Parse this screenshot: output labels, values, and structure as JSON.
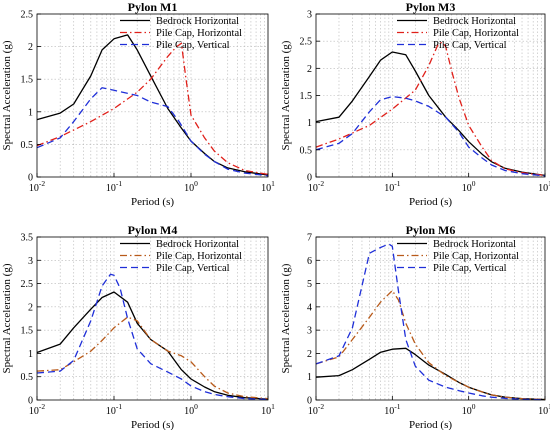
{
  "figure_bg": "#ffffff",
  "chart_data": [
    {
      "type": "line",
      "title": "Pylon M1",
      "xlabel": "Period (s)",
      "ylabel": "Spectral Acceleration (g)",
      "xscale": "log",
      "xlim": [
        0.01,
        10
      ],
      "ylim": [
        0,
        2.5
      ],
      "xticks": [
        0.01,
        0.1,
        1,
        10
      ],
      "xtick_labels": [
        "10",
        "10",
        "10",
        "10"
      ],
      "xtick_exponents": [
        "-2",
        "-1",
        "0",
        "1"
      ],
      "yticks": [
        0,
        0.5,
        1,
        1.5,
        2,
        2.5
      ],
      "ytick_labels": [
        "0",
        "0.5",
        "1",
        "1.5",
        "2",
        "2.5"
      ],
      "grid": true,
      "legend_position": "top-right",
      "series": [
        {
          "name": "Bedrock Horizontal",
          "color": "#000000",
          "dash": "solid",
          "x": [
            0.01,
            0.02,
            0.03,
            0.05,
            0.07,
            0.1,
            0.15,
            0.2,
            0.3,
            0.5,
            0.75,
            1,
            1.5,
            2,
            3,
            5,
            10
          ],
          "y": [
            0.88,
            0.98,
            1.12,
            1.55,
            1.95,
            2.12,
            2.18,
            1.95,
            1.55,
            1.05,
            0.75,
            0.55,
            0.36,
            0.24,
            0.14,
            0.08,
            0.03
          ]
        },
        {
          "name": "Pile Cap, Horizontal",
          "color": "#e0201a",
          "dash": "dashdot",
          "x": [
            0.01,
            0.02,
            0.05,
            0.1,
            0.2,
            0.3,
            0.5,
            0.65,
            0.75,
            0.85,
            1,
            1.5,
            2,
            3,
            5,
            10
          ],
          "y": [
            0.48,
            0.62,
            0.85,
            1.05,
            1.3,
            1.5,
            1.85,
            2.0,
            2.05,
            1.55,
            0.95,
            0.6,
            0.4,
            0.22,
            0.1,
            0.04
          ]
        },
        {
          "name": "Pile Cap, Vertical",
          "color": "#1f2fd8",
          "dash": "dashed",
          "x": [
            0.01,
            0.02,
            0.03,
            0.05,
            0.07,
            0.1,
            0.2,
            0.3,
            0.5,
            0.7,
            1,
            1.5,
            2,
            3,
            5,
            10
          ],
          "y": [
            0.45,
            0.6,
            0.85,
            1.2,
            1.37,
            1.33,
            1.25,
            1.15,
            1.08,
            0.85,
            0.55,
            0.35,
            0.24,
            0.12,
            0.06,
            0.02
          ]
        }
      ]
    },
    {
      "type": "line",
      "title": "Pylon M3",
      "xlabel": "Period (s)",
      "ylabel": "Spectral Acceleration (g)",
      "xscale": "log",
      "xlim": [
        0.01,
        10
      ],
      "ylim": [
        0,
        3
      ],
      "xticks": [
        0.01,
        0.1,
        1,
        10
      ],
      "xtick_labels": [
        "10",
        "10",
        "10",
        "10"
      ],
      "xtick_exponents": [
        "-2",
        "-1",
        "0",
        "1"
      ],
      "yticks": [
        0,
        0.5,
        1,
        1.5,
        2,
        2.5,
        3
      ],
      "ytick_labels": [
        "0",
        "0.5",
        "1",
        "1.5",
        "2",
        "2.5",
        "3"
      ],
      "grid": true,
      "legend_position": "top-right",
      "series": [
        {
          "name": "Bedrock Horizontal",
          "color": "#000000",
          "dash": "solid",
          "x": [
            0.01,
            0.02,
            0.03,
            0.05,
            0.07,
            0.1,
            0.15,
            0.2,
            0.3,
            0.5,
            0.75,
            1,
            1.5,
            2,
            3,
            5,
            10
          ],
          "y": [
            1.02,
            1.1,
            1.4,
            1.85,
            2.15,
            2.3,
            2.25,
            1.95,
            1.5,
            1.1,
            0.85,
            0.65,
            0.42,
            0.28,
            0.16,
            0.09,
            0.03
          ]
        },
        {
          "name": "Pile Cap, Horizontal",
          "color": "#e0201a",
          "dash": "dashdot",
          "x": [
            0.01,
            0.02,
            0.05,
            0.1,
            0.2,
            0.3,
            0.4,
            0.45,
            0.5,
            0.6,
            0.75,
            1,
            1.5,
            2,
            3,
            5,
            10
          ],
          "y": [
            0.55,
            0.7,
            0.95,
            1.25,
            1.6,
            2.05,
            2.45,
            2.48,
            2.4,
            1.95,
            1.45,
            0.95,
            0.55,
            0.3,
            0.15,
            0.08,
            0.03
          ]
        },
        {
          "name": "Pile Cap, Vertical",
          "color": "#1f2fd8",
          "dash": "dashed",
          "x": [
            0.01,
            0.02,
            0.03,
            0.05,
            0.07,
            0.1,
            0.15,
            0.2,
            0.3,
            0.5,
            0.75,
            1,
            1.5,
            2,
            3,
            5,
            10
          ],
          "y": [
            0.5,
            0.62,
            0.8,
            1.2,
            1.42,
            1.48,
            1.45,
            1.4,
            1.3,
            1.1,
            0.82,
            0.55,
            0.35,
            0.22,
            0.12,
            0.06,
            0.02
          ]
        }
      ]
    },
    {
      "type": "line",
      "title": "Pylon M4",
      "xlabel": "Period (s)",
      "ylabel": "Spectral Acceleration (g)",
      "xscale": "log",
      "xlim": [
        0.01,
        10
      ],
      "ylim": [
        0,
        3.5
      ],
      "xticks": [
        0.01,
        0.1,
        1,
        10
      ],
      "xtick_labels": [
        "10",
        "10",
        "10",
        "10"
      ],
      "xtick_exponents": [
        "-2",
        "-1",
        "0",
        "1"
      ],
      "yticks": [
        0,
        0.5,
        1,
        1.5,
        2,
        2.5,
        3,
        3.5
      ],
      "ytick_labels": [
        "0",
        "0.5",
        "1",
        "1.5",
        "2",
        "2.5",
        "3",
        "3.5"
      ],
      "grid": true,
      "legend_position": "top-right",
      "series": [
        {
          "name": "Bedrock Horizontal",
          "color": "#000000",
          "dash": "solid",
          "x": [
            0.01,
            0.02,
            0.03,
            0.05,
            0.07,
            0.1,
            0.15,
            0.2,
            0.3,
            0.5,
            0.75,
            1,
            1.5,
            2,
            3,
            5,
            10
          ],
          "y": [
            1.02,
            1.2,
            1.55,
            1.95,
            2.2,
            2.32,
            2.1,
            1.65,
            1.3,
            1.05,
            0.65,
            0.45,
            0.28,
            0.18,
            0.1,
            0.05,
            0.02
          ]
        },
        {
          "name": "Pile Cap, Horizontal",
          "color": "#b85a1a",
          "dash": "dashdot",
          "x": [
            0.01,
            0.02,
            0.03,
            0.05,
            0.07,
            0.1,
            0.15,
            0.2,
            0.3,
            0.5,
            0.75,
            1,
            1.5,
            2,
            3,
            5,
            10
          ],
          "y": [
            0.62,
            0.65,
            0.82,
            1.05,
            1.28,
            1.55,
            1.78,
            1.7,
            1.3,
            1.05,
            0.95,
            0.82,
            0.5,
            0.3,
            0.15,
            0.07,
            0.03
          ]
        },
        {
          "name": "Pile Cap, Vertical",
          "color": "#1f2fd8",
          "dash": "dashed",
          "x": [
            0.01,
            0.02,
            0.03,
            0.05,
            0.07,
            0.09,
            0.1,
            0.12,
            0.15,
            0.2,
            0.3,
            0.5,
            0.75,
            1,
            1.5,
            2,
            3,
            5,
            10
          ],
          "y": [
            0.58,
            0.62,
            0.85,
            1.7,
            2.45,
            2.7,
            2.68,
            2.4,
            1.75,
            1.1,
            0.78,
            0.6,
            0.45,
            0.3,
            0.18,
            0.12,
            0.07,
            0.03,
            0.01
          ]
        }
      ]
    },
    {
      "type": "line",
      "title": "Pylon M6",
      "xlabel": "Period (s)",
      "ylabel": "Spectral Acceleration (g)",
      "xscale": "log",
      "xlim": [
        0.01,
        10
      ],
      "ylim": [
        0,
        7
      ],
      "xticks": [
        0.01,
        0.1,
        1,
        10
      ],
      "xtick_labels": [
        "10",
        "10",
        "10",
        "10"
      ],
      "xtick_exponents": [
        "-2",
        "-1",
        "0",
        "1"
      ],
      "yticks": [
        0,
        1,
        2,
        3,
        4,
        5,
        6,
        7
      ],
      "ytick_labels": [
        "0",
        "1",
        "2",
        "3",
        "4",
        "5",
        "6",
        "7"
      ],
      "grid": true,
      "legend_position": "top-right",
      "series": [
        {
          "name": "Bedrock Horizontal",
          "color": "#000000",
          "dash": "solid",
          "x": [
            0.01,
            0.02,
            0.03,
            0.05,
            0.07,
            0.1,
            0.15,
            0.2,
            0.3,
            0.5,
            0.75,
            1,
            1.5,
            2,
            3,
            5,
            10
          ],
          "y": [
            0.98,
            1.05,
            1.3,
            1.75,
            2.05,
            2.18,
            2.22,
            1.95,
            1.5,
            1.1,
            0.75,
            0.55,
            0.35,
            0.22,
            0.12,
            0.06,
            0.02
          ]
        },
        {
          "name": "Pile Cap, Horizontal",
          "color": "#b85a1a",
          "dash": "dashdot",
          "x": [
            0.01,
            0.02,
            0.03,
            0.05,
            0.07,
            0.1,
            0.12,
            0.15,
            0.2,
            0.3,
            0.5,
            0.75,
            1,
            1.5,
            2,
            3,
            5,
            10
          ],
          "y": [
            1.55,
            1.85,
            2.6,
            3.55,
            4.2,
            4.7,
            4.3,
            3.3,
            2.4,
            1.6,
            1.05,
            0.75,
            0.55,
            0.35,
            0.22,
            0.12,
            0.06,
            0.02
          ]
        },
        {
          "name": "Pile Cap, Vertical",
          "color": "#1f2fd8",
          "dash": "dashed",
          "x": [
            0.01,
            0.02,
            0.03,
            0.05,
            0.07,
            0.09,
            0.1,
            0.12,
            0.15,
            0.2,
            0.3,
            0.5,
            0.75,
            1,
            1.5,
            2,
            3,
            5,
            10
          ],
          "y": [
            1.55,
            1.9,
            3.1,
            6.3,
            6.55,
            6.7,
            6.6,
            4.7,
            2.6,
            1.45,
            0.85,
            0.55,
            0.4,
            0.3,
            0.18,
            0.12,
            0.07,
            0.03,
            0.01
          ]
        }
      ]
    }
  ]
}
